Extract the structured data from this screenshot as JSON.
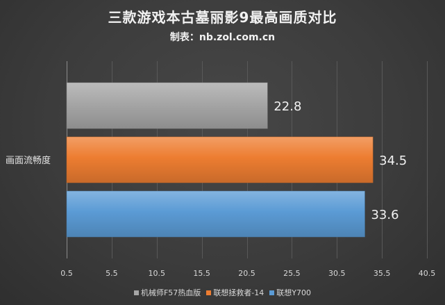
{
  "title": "三款游戏本古墓丽影9最高画质对比",
  "subtitle": "制表：nb.zol.com.cn",
  "chart_data": {
    "type": "bar",
    "orientation": "horizontal",
    "categories": [
      "画面流畅度"
    ],
    "series": [
      {
        "name": "机械师F57热血版",
        "values": [
          22.8
        ],
        "color": "#a6a6a6"
      },
      {
        "name": "联想拯救者-14",
        "values": [
          34.5
        ],
        "color": "#ed7d31"
      },
      {
        "name": "联想Y700",
        "values": [
          33.6
        ],
        "color": "#5b9bd5"
      }
    ],
    "xlim": [
      0.5,
      40.5
    ],
    "xticks": [
      0.5,
      5.5,
      10.5,
      15.5,
      20.5,
      25.5,
      30.5,
      35.5,
      40.5
    ],
    "grid": true,
    "legend_position": "bottom",
    "data_labels": true
  }
}
